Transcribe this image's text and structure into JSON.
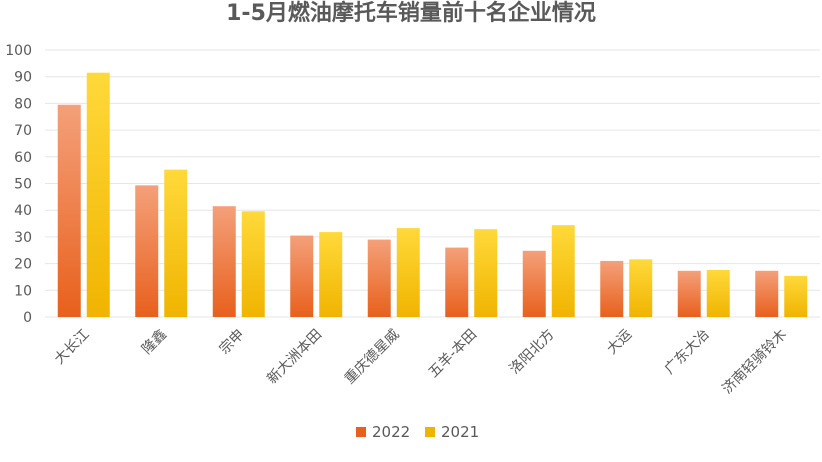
{
  "chart_data": {
    "type": "bar",
    "title": "1-5月燃油摩托车销量前十名企业情况",
    "categories": [
      "大长江",
      "隆鑫",
      "宗申",
      "新大洲本田",
      "重庆德星威",
      "五羊-本田",
      "洛阳北方",
      "大运",
      "广东大冶",
      "济南轻骑铃木"
    ],
    "series": [
      {
        "name": "2022",
        "values": [
          79.5,
          49.3,
          41.5,
          30.5,
          29.0,
          26.0,
          24.8,
          21.0,
          17.3,
          17.3
        ],
        "color_top": "#f4a07a",
        "color_bottom": "#e8601c"
      },
      {
        "name": "2021",
        "values": [
          91.5,
          55.2,
          39.6,
          31.8,
          33.3,
          32.9,
          34.4,
          21.6,
          17.6,
          15.4
        ],
        "color_top": "#ffd93a",
        "color_bottom": "#f0b400"
      }
    ],
    "yticks": [
      "0",
      "10",
      "20",
      "30",
      "40",
      "50",
      "60",
      "70",
      "80",
      "90",
      "100"
    ],
    "ylim": [
      0,
      100
    ],
    "xlabel": "",
    "ylabel": "",
    "grid": true,
    "legend_position": "bottom"
  }
}
